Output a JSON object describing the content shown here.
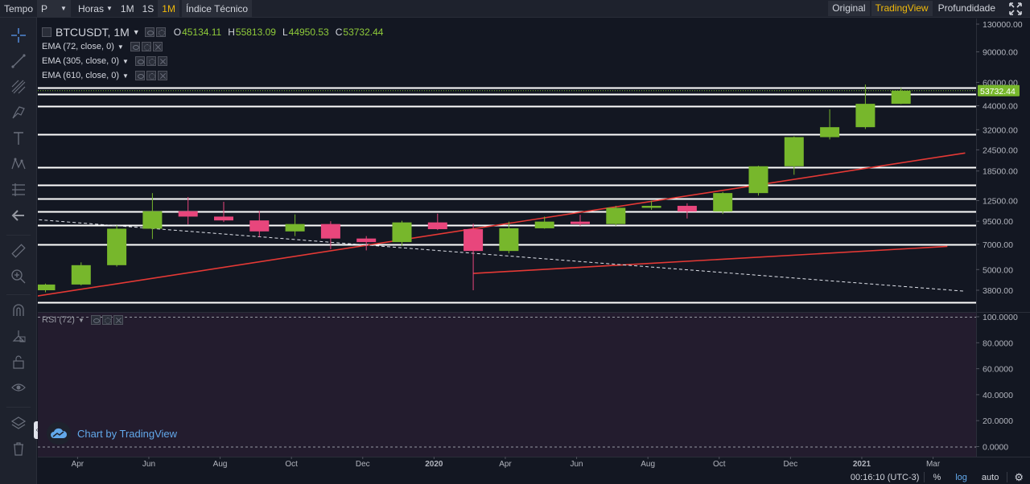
{
  "toolbar": {
    "tempo_label": "Tempo",
    "chart_style_value": "P",
    "time_unit_label": "Horas",
    "interval_1m_label": "1M",
    "interval_1s_label": "1S",
    "interval_1M_label": "1M",
    "indicators_label": "Índice Técnico",
    "view_original_label": "Original",
    "view_tradingview_label": "TradingView",
    "view_depth_label": "Profundidade"
  },
  "legend": {
    "symbol": "BTCUSDT, 1M",
    "open_key": "O",
    "open": "45134.11",
    "high_key": "H",
    "high": "55813.09",
    "low_key": "L",
    "low": "44950.53",
    "close_key": "C",
    "close": "53732.44",
    "ema1": "EMA (72, close, 0)",
    "ema2": "EMA (305, close, 0)",
    "ema3": "EMA (610, close, 0)",
    "rsi": "RSI (72)"
  },
  "watermark": "Chart by TradingView",
  "bottom": {
    "time": "00:16:10 (UTC-3)",
    "percent": "%",
    "log": "log",
    "auto": "auto"
  },
  "colors": {
    "background": "#131722",
    "up": "#77b72c",
    "down": "#e8467c",
    "trendline": "#e53935",
    "hline": "#ffffff",
    "accent": "#f0b90b",
    "rsi_bg": "#231c2e"
  },
  "sidebar_icons": [
    "crosshair-icon",
    "trend-line-icon",
    "fib-icon",
    "brush-icon",
    "text-icon",
    "pattern-icon",
    "measure-icon",
    "back-arrow-icon",
    "ruler-icon",
    "zoom-in-icon",
    "magnet-icon",
    "lock-drawing-icon",
    "unlock-icon",
    "eye-icon",
    "layers-icon",
    "trash-icon"
  ],
  "chart_data": [
    {
      "type": "candlestick",
      "title": "BTCUSDT, 1M",
      "yscale": "log",
      "ylim": [
        2800,
        130000
      ],
      "y_ticks": [
        "130000.00",
        "90000.00",
        "60000.00",
        "44000.00",
        "32000.00",
        "24500.00",
        "18500.00",
        "12500.00",
        "9500.00",
        "7000.00",
        "5000.00",
        "3800.00"
      ],
      "y_tick_values": [
        130000,
        90000,
        60000,
        44000,
        32000,
        24500,
        18500,
        12500,
        9500,
        7000,
        5000,
        3800
      ],
      "x_ticks": [
        "Apr",
        "Jun",
        "Aug",
        "Oct",
        "Dec",
        "2020",
        "Apr",
        "Jun",
        "Aug",
        "Oct",
        "Dec",
        "2021",
        "Mar"
      ],
      "x_tick_months": [
        1,
        3,
        5,
        7,
        9,
        11,
        13,
        15,
        17,
        19,
        21,
        23,
        25
      ],
      "month_start": "2019-03",
      "candles": [
        {
          "m": 0,
          "o": 3800,
          "h": 4150,
          "l": 3700,
          "c": 4100
        },
        {
          "m": 1,
          "o": 4100,
          "h": 5500,
          "l": 4050,
          "c": 5300
        },
        {
          "m": 2,
          "o": 5300,
          "h": 9000,
          "l": 5200,
          "c": 8600
        },
        {
          "m": 3,
          "o": 8600,
          "h": 13800,
          "l": 7500,
          "c": 10850
        },
        {
          "m": 4,
          "o": 10850,
          "h": 13100,
          "l": 9100,
          "c": 10100
        },
        {
          "m": 5,
          "o": 10100,
          "h": 12300,
          "l": 9400,
          "c": 9600
        },
        {
          "m": 6,
          "o": 9600,
          "h": 10900,
          "l": 7700,
          "c": 8300
        },
        {
          "m": 7,
          "o": 8300,
          "h": 10400,
          "l": 7800,
          "c": 9150
        },
        {
          "m": 8,
          "o": 9150,
          "h": 9500,
          "l": 6550,
          "c": 7550
        },
        {
          "m": 9,
          "o": 7550,
          "h": 7800,
          "l": 6450,
          "c": 7200
        },
        {
          "m": 10,
          "o": 7200,
          "h": 9550,
          "l": 6850,
          "c": 9350
        },
        {
          "m": 11,
          "o": 9350,
          "h": 10500,
          "l": 8450,
          "c": 8550
        },
        {
          "m": 12,
          "o": 8550,
          "h": 9200,
          "l": 3800,
          "c": 6400
        },
        {
          "m": 13,
          "o": 6400,
          "h": 9450,
          "l": 6200,
          "c": 8650
        },
        {
          "m": 14,
          "o": 8650,
          "h": 10100,
          "l": 8600,
          "c": 9450
        },
        {
          "m": 15,
          "o": 9450,
          "h": 10350,
          "l": 8950,
          "c": 9150
        },
        {
          "m": 16,
          "o": 9150,
          "h": 11650,
          "l": 8950,
          "c": 11350
        },
        {
          "m": 17,
          "o": 11350,
          "h": 12450,
          "l": 11050,
          "c": 11650
        },
        {
          "m": 18,
          "o": 11650,
          "h": 12050,
          "l": 9850,
          "c": 10800
        },
        {
          "m": 19,
          "o": 10800,
          "h": 14000,
          "l": 10450,
          "c": 13800
        },
        {
          "m": 20,
          "o": 13800,
          "h": 19850,
          "l": 13350,
          "c": 19700
        },
        {
          "m": 21,
          "o": 19700,
          "h": 29300,
          "l": 17600,
          "c": 29000
        },
        {
          "m": 22,
          "o": 29000,
          "h": 41950,
          "l": 28150,
          "c": 33100
        },
        {
          "m": 23,
          "o": 33100,
          "h": 58300,
          "l": 32300,
          "c": 45134.11
        },
        {
          "m": 24,
          "o": 45134.11,
          "h": 55813.09,
          "l": 44950.53,
          "c": 53732.44
        }
      ],
      "last_price_label": "53732.44",
      "horizontal_levels": [
        56000,
        51500,
        44000,
        30200,
        19500,
        15400,
        12800,
        10800,
        9050,
        7000,
        3250
      ],
      "trendlines": [
        {
          "style": "solid",
          "color": "#e53935",
          "from": {
            "m": -0.5,
            "p": 3450
          },
          "to": {
            "m": 25.8,
            "p": 23500
          }
        },
        {
          "style": "solid",
          "color": "#e53935",
          "from": {
            "m": 12,
            "p": 4750
          },
          "to": {
            "m": 25.3,
            "p": 6800
          }
        },
        {
          "style": "dashed",
          "color": "#e0e3eb",
          "from": {
            "m": -0.5,
            "p": 9800
          },
          "to": {
            "m": 25.8,
            "p": 3750
          }
        }
      ]
    },
    {
      "type": "line",
      "title": "RSI (72)",
      "ylim": [
        0,
        100
      ],
      "y_ticks": [
        "100.0000",
        "80.0000",
        "60.0000",
        "40.0000",
        "20.0000",
        "0.0000"
      ],
      "y_tick_values": [
        100,
        80,
        60,
        40,
        20,
        0
      ],
      "series": []
    }
  ]
}
